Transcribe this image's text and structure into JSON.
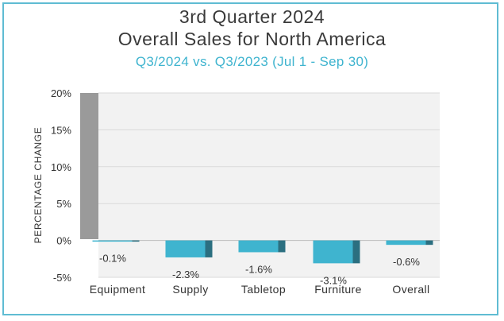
{
  "chart_data": {
    "type": "bar",
    "title_line1": "3rd Quarter 2024",
    "title_line2": "Overall Sales for North America",
    "subtitle": "Q3/2024 vs. Q3/2023 (Jul 1 - Sep 30)",
    "ylabel": "PERCENTAGE CHANGE",
    "xlabel": "",
    "ylim": [
      -5,
      20
    ],
    "yticks": [
      20,
      15,
      10,
      5,
      0,
      -5
    ],
    "ytick_labels": [
      "20%",
      "15%",
      "10%",
      "5%",
      "0%",
      "-5%"
    ],
    "categories": [
      "Equipment",
      "Supply",
      "Tabletop",
      "Furniture",
      "Overall"
    ],
    "values": [
      -0.1,
      -2.3,
      -1.6,
      -3.1,
      -0.6
    ],
    "data_labels": [
      "-0.1%",
      "-2.3%",
      "-1.6%",
      "-3.1%",
      "-0.6%"
    ],
    "grid": true,
    "colors": {
      "bar_face": "#3fb4cf",
      "bar_side": "#2b6f80",
      "wall": "#9a9a9a",
      "plot_bg": "#f2f2f2",
      "grid": "#d9d9d9",
      "border": "#5fbcd3",
      "title": "#3a3a3a",
      "subtitle": "#3fb4cf"
    }
  }
}
